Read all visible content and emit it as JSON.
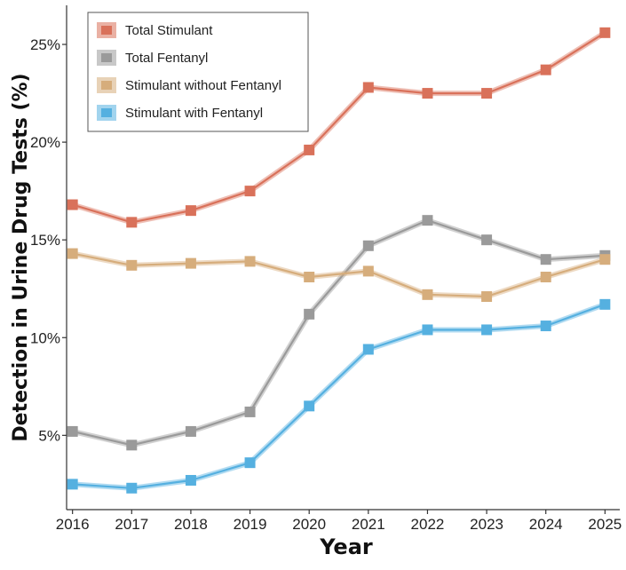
{
  "chart_data": {
    "type": "line",
    "title": "",
    "xlabel": "Year",
    "ylabel": "Detection in Urine Drug Tests (%)",
    "x": [
      2016,
      2017,
      2018,
      2019,
      2020,
      2021,
      2022,
      2023,
      2024,
      2025
    ],
    "x_tick_labels": [
      "2016",
      "2017",
      "2018",
      "2019",
      "2020",
      "2021",
      "2022",
      "2023",
      "2024",
      "2025"
    ],
    "y_ticks": [
      5,
      10,
      15,
      20,
      25
    ],
    "y_tick_labels": [
      "5%",
      "10%",
      "15%",
      "20%",
      "25%"
    ],
    "ylim": [
      1.2,
      27.0
    ],
    "xlim": [
      2015.9,
      2025.25
    ],
    "grid": false,
    "legend_position": "top-left",
    "series": [
      {
        "name": "Total Stimulant",
        "color": "#d9715a",
        "values": [
          16.8,
          15.9,
          16.5,
          17.5,
          19.6,
          22.8,
          22.5,
          22.5,
          23.7,
          25.6
        ]
      },
      {
        "name": "Total Fentanyl",
        "color": "#9a9a9a",
        "values": [
          5.2,
          4.5,
          5.2,
          6.2,
          11.2,
          14.7,
          16.0,
          15.0,
          14.0,
          14.2
        ]
      },
      {
        "name": "Stimulant without Fentanyl",
        "color": "#d6ad7c",
        "values": [
          14.3,
          13.7,
          13.8,
          13.9,
          13.1,
          13.4,
          12.2,
          12.1,
          13.1,
          14.0
        ]
      },
      {
        "name": "Stimulant with Fentanyl",
        "color": "#55b0e0",
        "values": [
          2.5,
          2.3,
          2.7,
          3.6,
          6.5,
          9.4,
          10.4,
          10.4,
          10.6,
          11.7
        ]
      }
    ]
  }
}
